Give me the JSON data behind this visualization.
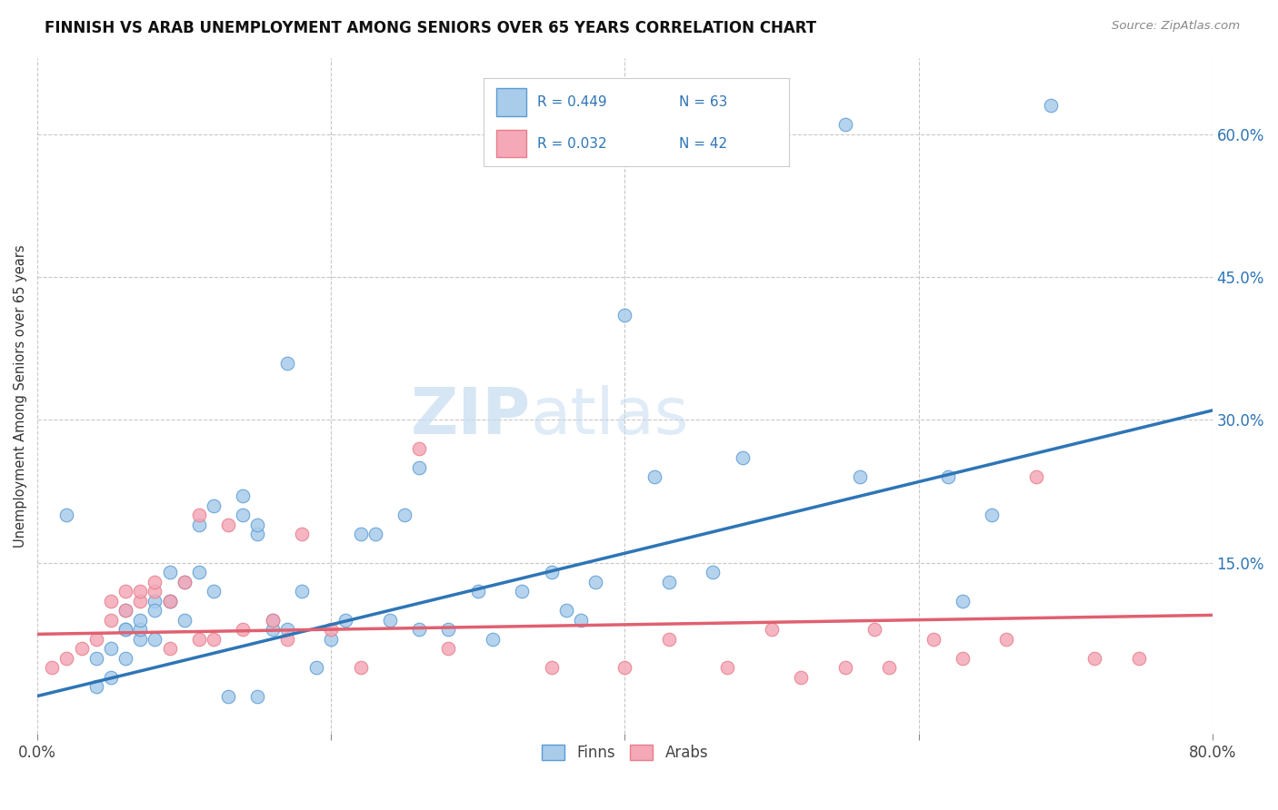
{
  "title": "FINNISH VS ARAB UNEMPLOYMENT AMONG SENIORS OVER 65 YEARS CORRELATION CHART",
  "source": "Source: ZipAtlas.com",
  "ylabel": "Unemployment Among Seniors over 65 years",
  "xlim": [
    0.0,
    0.8
  ],
  "ylim": [
    -0.03,
    0.68
  ],
  "ytick_labels": [
    "60.0%",
    "45.0%",
    "30.0%",
    "15.0%"
  ],
  "ytick_values": [
    0.6,
    0.45,
    0.3,
    0.15
  ],
  "watermark_zip": "ZIP",
  "watermark_atlas": "atlas",
  "legend_finn_r": "R = 0.449",
  "legend_finn_n": "N = 63",
  "legend_arab_r": "R = 0.032",
  "legend_arab_n": "N = 42",
  "finn_color": "#A8CCEA",
  "arab_color": "#F4A8B8",
  "finn_edge_color": "#5B9BD5",
  "arab_edge_color": "#E87E8A",
  "finn_line_color": "#2E75B6",
  "arab_line_color": "#E06070",
  "legend_text_color": "#2E75B6",
  "legend_r_color": "#333333",
  "background_color": "#FFFFFF",
  "grid_color": "#C8C8C8",
  "finn_scatter_x": [
    0.02,
    0.04,
    0.04,
    0.05,
    0.05,
    0.06,
    0.06,
    0.06,
    0.06,
    0.07,
    0.07,
    0.07,
    0.08,
    0.08,
    0.08,
    0.09,
    0.09,
    0.09,
    0.1,
    0.1,
    0.11,
    0.11,
    0.12,
    0.12,
    0.13,
    0.14,
    0.14,
    0.15,
    0.15,
    0.15,
    0.16,
    0.16,
    0.17,
    0.17,
    0.18,
    0.19,
    0.2,
    0.21,
    0.22,
    0.23,
    0.24,
    0.25,
    0.26,
    0.26,
    0.28,
    0.3,
    0.31,
    0.33,
    0.35,
    0.36,
    0.37,
    0.38,
    0.4,
    0.42,
    0.43,
    0.46,
    0.48,
    0.55,
    0.56,
    0.62,
    0.63,
    0.65,
    0.69
  ],
  "finn_scatter_y": [
    0.2,
    0.05,
    0.02,
    0.06,
    0.03,
    0.05,
    0.08,
    0.08,
    0.1,
    0.07,
    0.08,
    0.09,
    0.07,
    0.11,
    0.1,
    0.11,
    0.14,
    0.11,
    0.09,
    0.13,
    0.19,
    0.14,
    0.21,
    0.12,
    0.01,
    0.2,
    0.22,
    0.18,
    0.19,
    0.01,
    0.08,
    0.09,
    0.08,
    0.36,
    0.12,
    0.04,
    0.07,
    0.09,
    0.18,
    0.18,
    0.09,
    0.2,
    0.25,
    0.08,
    0.08,
    0.12,
    0.07,
    0.12,
    0.14,
    0.1,
    0.09,
    0.13,
    0.41,
    0.24,
    0.13,
    0.14,
    0.26,
    0.61,
    0.24,
    0.24,
    0.11,
    0.2,
    0.63
  ],
  "arab_scatter_x": [
    0.01,
    0.02,
    0.03,
    0.04,
    0.05,
    0.05,
    0.06,
    0.06,
    0.07,
    0.07,
    0.08,
    0.08,
    0.09,
    0.09,
    0.1,
    0.11,
    0.11,
    0.12,
    0.13,
    0.14,
    0.16,
    0.17,
    0.18,
    0.2,
    0.22,
    0.26,
    0.28,
    0.35,
    0.4,
    0.43,
    0.47,
    0.5,
    0.52,
    0.55,
    0.57,
    0.58,
    0.61,
    0.63,
    0.66,
    0.68,
    0.72,
    0.75
  ],
  "arab_scatter_y": [
    0.04,
    0.05,
    0.06,
    0.07,
    0.09,
    0.11,
    0.12,
    0.1,
    0.11,
    0.12,
    0.12,
    0.13,
    0.11,
    0.06,
    0.13,
    0.2,
    0.07,
    0.07,
    0.19,
    0.08,
    0.09,
    0.07,
    0.18,
    0.08,
    0.04,
    0.27,
    0.06,
    0.04,
    0.04,
    0.07,
    0.04,
    0.08,
    0.03,
    0.04,
    0.08,
    0.04,
    0.07,
    0.05,
    0.07,
    0.24,
    0.05,
    0.05
  ],
  "finn_trend_x": [
    0.0,
    0.8
  ],
  "finn_trend_y": [
    0.01,
    0.31
  ],
  "arab_trend_x": [
    0.0,
    0.8
  ],
  "arab_trend_y": [
    0.075,
    0.095
  ]
}
